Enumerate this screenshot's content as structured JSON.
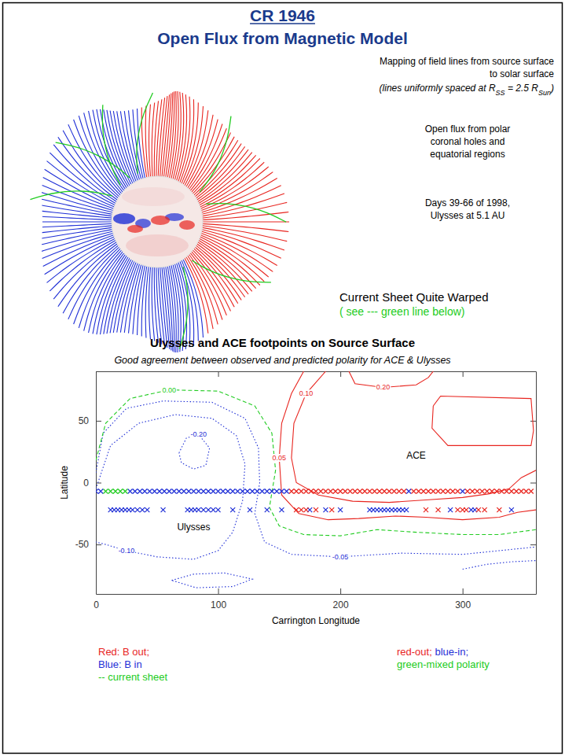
{
  "header": {
    "title": "CR 1946",
    "subtitle": "Open Flux from Magnetic Model"
  },
  "image_notes": {
    "mapping": [
      "Mapping of field lines from source surface",
      "to solar surface"
    ],
    "spacing": [
      {
        "text": "(lines uniformly spaced at R",
        "sub": false
      },
      {
        "text": "SS",
        "sub": true
      },
      {
        "text": " = 2.5 R",
        "sub": false
      },
      {
        "text": "Sun",
        "sub": true
      },
      {
        "text": ")",
        "sub": false
      }
    ],
    "open_flux": [
      "Open flux from polar",
      "coronal holes and",
      "equatorial regions"
    ],
    "days": [
      "Days 39-66 of 1998,",
      "Ulysses at 5.1 AU"
    ],
    "warped": "Current Sheet Quite Warped",
    "warped_note": "( see --- green line below)"
  },
  "chart_data": {
    "type": "contour",
    "title": "Ulysses and ACE footpoints on Source Surface",
    "subtitle": "Good agreement between observed and predicted polarity for ACE & Ulysses",
    "x_label": "Carrington Longitude",
    "y_label": "Latitude",
    "xlim": [
      0,
      360
    ],
    "xticks": [
      0,
      100,
      200,
      300
    ],
    "ylim": [
      -90,
      90
    ],
    "yticks": [
      -50,
      0,
      50
    ],
    "contours": [
      {
        "value": -0.2,
        "label": "-0.20",
        "pieces": [
          {
            "x": [
              68,
              74,
              84,
              93,
              90,
              80,
              70,
              68
            ],
            "y": [
              24,
              36,
              39,
              28,
              14,
              11,
              16,
              24
            ]
          },
          {
            "x": [
              62,
              80,
              105,
              128,
              112,
              82,
              62
            ],
            "y": [
              -79,
              -74,
              -73,
              -78,
              -84,
              -85,
              -79
            ]
          }
        ]
      },
      {
        "value": -0.1,
        "label": "-0.10",
        "pieces": [
          {
            "x": [
              0,
              12,
              35,
              65,
              95,
              115,
              122,
              120,
              112,
              100,
              80,
              50,
              25,
              8,
              0
            ],
            "y": [
              -5,
              30,
              48,
              55,
              52,
              38,
              15,
              -15,
              -40,
              -55,
              -62,
              -60,
              -55,
              -50,
              -48
            ]
          },
          {
            "x": [
              300,
              320,
              340,
              360
            ],
            "y": [
              -70,
              -66,
              -64,
              -63
            ]
          }
        ]
      },
      {
        "value": -0.05,
        "label": "-0.05",
        "pieces": [
          {
            "x": [
              0,
              6,
              25,
              55,
              95,
              122,
              133,
              134,
              130,
              138,
              160,
              200,
              250,
              300,
              330,
              360
            ],
            "y": [
              8,
              40,
              60,
              66,
              65,
              52,
              28,
              0,
              -25,
              -48,
              -58,
              -60,
              -57,
              -58,
              -55,
              -52
            ]
          }
        ]
      },
      {
        "value": 0,
        "label": "0.00",
        "pieces": [
          {
            "x": [
              0,
              8,
              28,
              60,
              100,
              130,
              144,
              147,
              142,
              150,
              170,
              200,
              230,
              260,
              300,
              330,
              360
            ],
            "y": [
              18,
              48,
              68,
              75,
              74,
              62,
              40,
              10,
              -20,
              -35,
              -42,
              -43,
              -38,
              -40,
              -42,
              -42,
              -38
            ]
          }
        ]
      },
      {
        "value": 0.05,
        "label": "0.05",
        "pieces": [
          {
            "x": [
              170,
              160,
              152,
              150,
              152,
              166,
              190,
              215,
              245,
              270,
              300,
              330,
              345,
              360
            ],
            "y": [
              90,
              72,
              48,
              20,
              -10,
              -25,
              -30,
              -29,
              -27,
              -28,
              -30,
              -28,
              -24,
              -22
            ]
          }
        ]
      },
      {
        "value": 0.1,
        "label": "0.10",
        "pieces": [
          {
            "x": [
              188,
              172,
              162,
              160,
              164,
              182,
              210,
              240,
              270,
              300,
              322,
              338,
              348,
              360
            ],
            "y": [
              90,
              72,
              48,
              20,
              0,
              -10,
              -15,
              -16,
              -14,
              -12,
              -9,
              -5,
              4,
              10
            ]
          }
        ]
      },
      {
        "value": 0.2,
        "label": "0.20",
        "pieces": [
          {
            "x": [
              207,
              212,
              235,
              262,
              272,
              276
            ],
            "y": [
              90,
              80,
              77,
              79,
              85,
              90
            ]
          },
          {
            "x": [
              276,
              275,
              288,
              356,
              358,
              356,
              282,
              276
            ],
            "y": [
              62,
              44,
              30,
              30,
              42,
              68,
              70,
              62
            ]
          }
        ]
      }
    ],
    "series": [
      {
        "color": "#1f2fd6",
        "marker": "x",
        "x": [
          0,
          4,
          28,
          32,
          36,
          40,
          44,
          48,
          52,
          56,
          60,
          64,
          68,
          72,
          76,
          80,
          84,
          88,
          92,
          96,
          100,
          104,
          108,
          112,
          116,
          120,
          124,
          128,
          132,
          136,
          140,
          144,
          148,
          152,
          156,
          256,
          300
        ],
        "y": [
          -7,
          -7,
          -7,
          -7,
          -7,
          -7,
          -7,
          -7,
          -7,
          -7,
          -7,
          -7,
          -7,
          -7,
          -7,
          -7,
          -7,
          -7,
          -7,
          -7,
          -7,
          -7,
          -7,
          -7,
          -7,
          -7,
          -7,
          -7,
          -7,
          -7,
          -7,
          -7,
          -7,
          -7,
          -7,
          -7,
          -7
        ]
      },
      {
        "color": "#22cc22",
        "marker": "x",
        "x": [
          8,
          12,
          16,
          20,
          24
        ],
        "y": [
          -7,
          -7,
          -7,
          -7,
          -7
        ]
      },
      {
        "color": "#e8251f",
        "marker": "x",
        "x": [
          160,
          164,
          168,
          172,
          176,
          180,
          184,
          188,
          192,
          196,
          200,
          204,
          208,
          212,
          216,
          220,
          224,
          228,
          232,
          236,
          240,
          244,
          248,
          252,
          260,
          264,
          268,
          272,
          276,
          280,
          284,
          288,
          292,
          296,
          304,
          308,
          312,
          316,
          320,
          324,
          328,
          332,
          336,
          340,
          344,
          348,
          352,
          356
        ],
        "y": [
          -7,
          -7,
          -7,
          -7,
          -7,
          -7,
          -7,
          -7,
          -7,
          -7,
          -7,
          -7,
          -7,
          -7,
          -7,
          -7,
          -7,
          -7,
          -7,
          -7,
          -7,
          -7,
          -7,
          -7,
          -7,
          -7,
          -7,
          -7,
          -7,
          -7,
          -7,
          -7,
          -7,
          -7,
          -7,
          -7,
          -7,
          -7,
          -7,
          -7,
          -7,
          -7,
          -7,
          -7,
          -7,
          -7,
          -7,
          -7
        ]
      },
      {
        "color": "#1f2fd6",
        "marker": "x",
        "x": [
          12,
          15,
          18,
          21,
          24,
          27,
          30,
          34,
          38,
          42,
          55,
          75,
          78,
          81,
          84,
          88,
          92,
          96,
          100,
          112,
          126,
          140,
          152,
          175,
          188,
          200,
          224,
          227,
          230,
          233,
          236,
          239,
          242,
          245,
          248,
          251,
          254,
          290,
          307,
          310,
          340
        ],
        "y": [
          -22,
          -22,
          -22,
          -22,
          -22,
          -22,
          -22,
          -22,
          -22,
          -22,
          -22,
          -22,
          -22,
          -22,
          -22,
          -22,
          -22,
          -22,
          -22,
          -22,
          -22,
          -22,
          -22,
          -22,
          -22,
          -22,
          -22,
          -22,
          -22,
          -22,
          -22,
          -22,
          -22,
          -22,
          -22,
          -22,
          -22,
          -22,
          -22,
          -22,
          -22
        ]
      },
      {
        "color": "#e8251f",
        "marker": "x",
        "x": [
          164,
          168,
          172,
          180,
          193,
          270,
          280,
          296,
          300,
          303,
          313,
          318,
          330
        ],
        "y": [
          -22,
          -22,
          -22,
          -22,
          -22,
          -22,
          -22,
          -22,
          -22,
          -22,
          -22,
          -22,
          -22
        ]
      }
    ],
    "annotations": [
      {
        "text": "ACE",
        "x": 262,
        "y": 22
      },
      {
        "text": "Ulysses",
        "x": 80,
        "y": -36
      }
    ]
  },
  "legend_notes": {
    "left": [
      {
        "text": "Red: B out;",
        "color": "#e8251f"
      },
      {
        "text": "Blue: B in",
        "color": "#1f2fd6"
      },
      {
        "text": "-- current sheet",
        "color": "#22cc22"
      }
    ],
    "right": [
      [
        {
          "text": "red-out;",
          "color": "#e8251f"
        },
        {
          "text": " blue-in;",
          "color": "#1f2fd6"
        }
      ],
      [
        {
          "text": "green-mixed polarity",
          "color": "#22cc22"
        }
      ]
    ]
  }
}
